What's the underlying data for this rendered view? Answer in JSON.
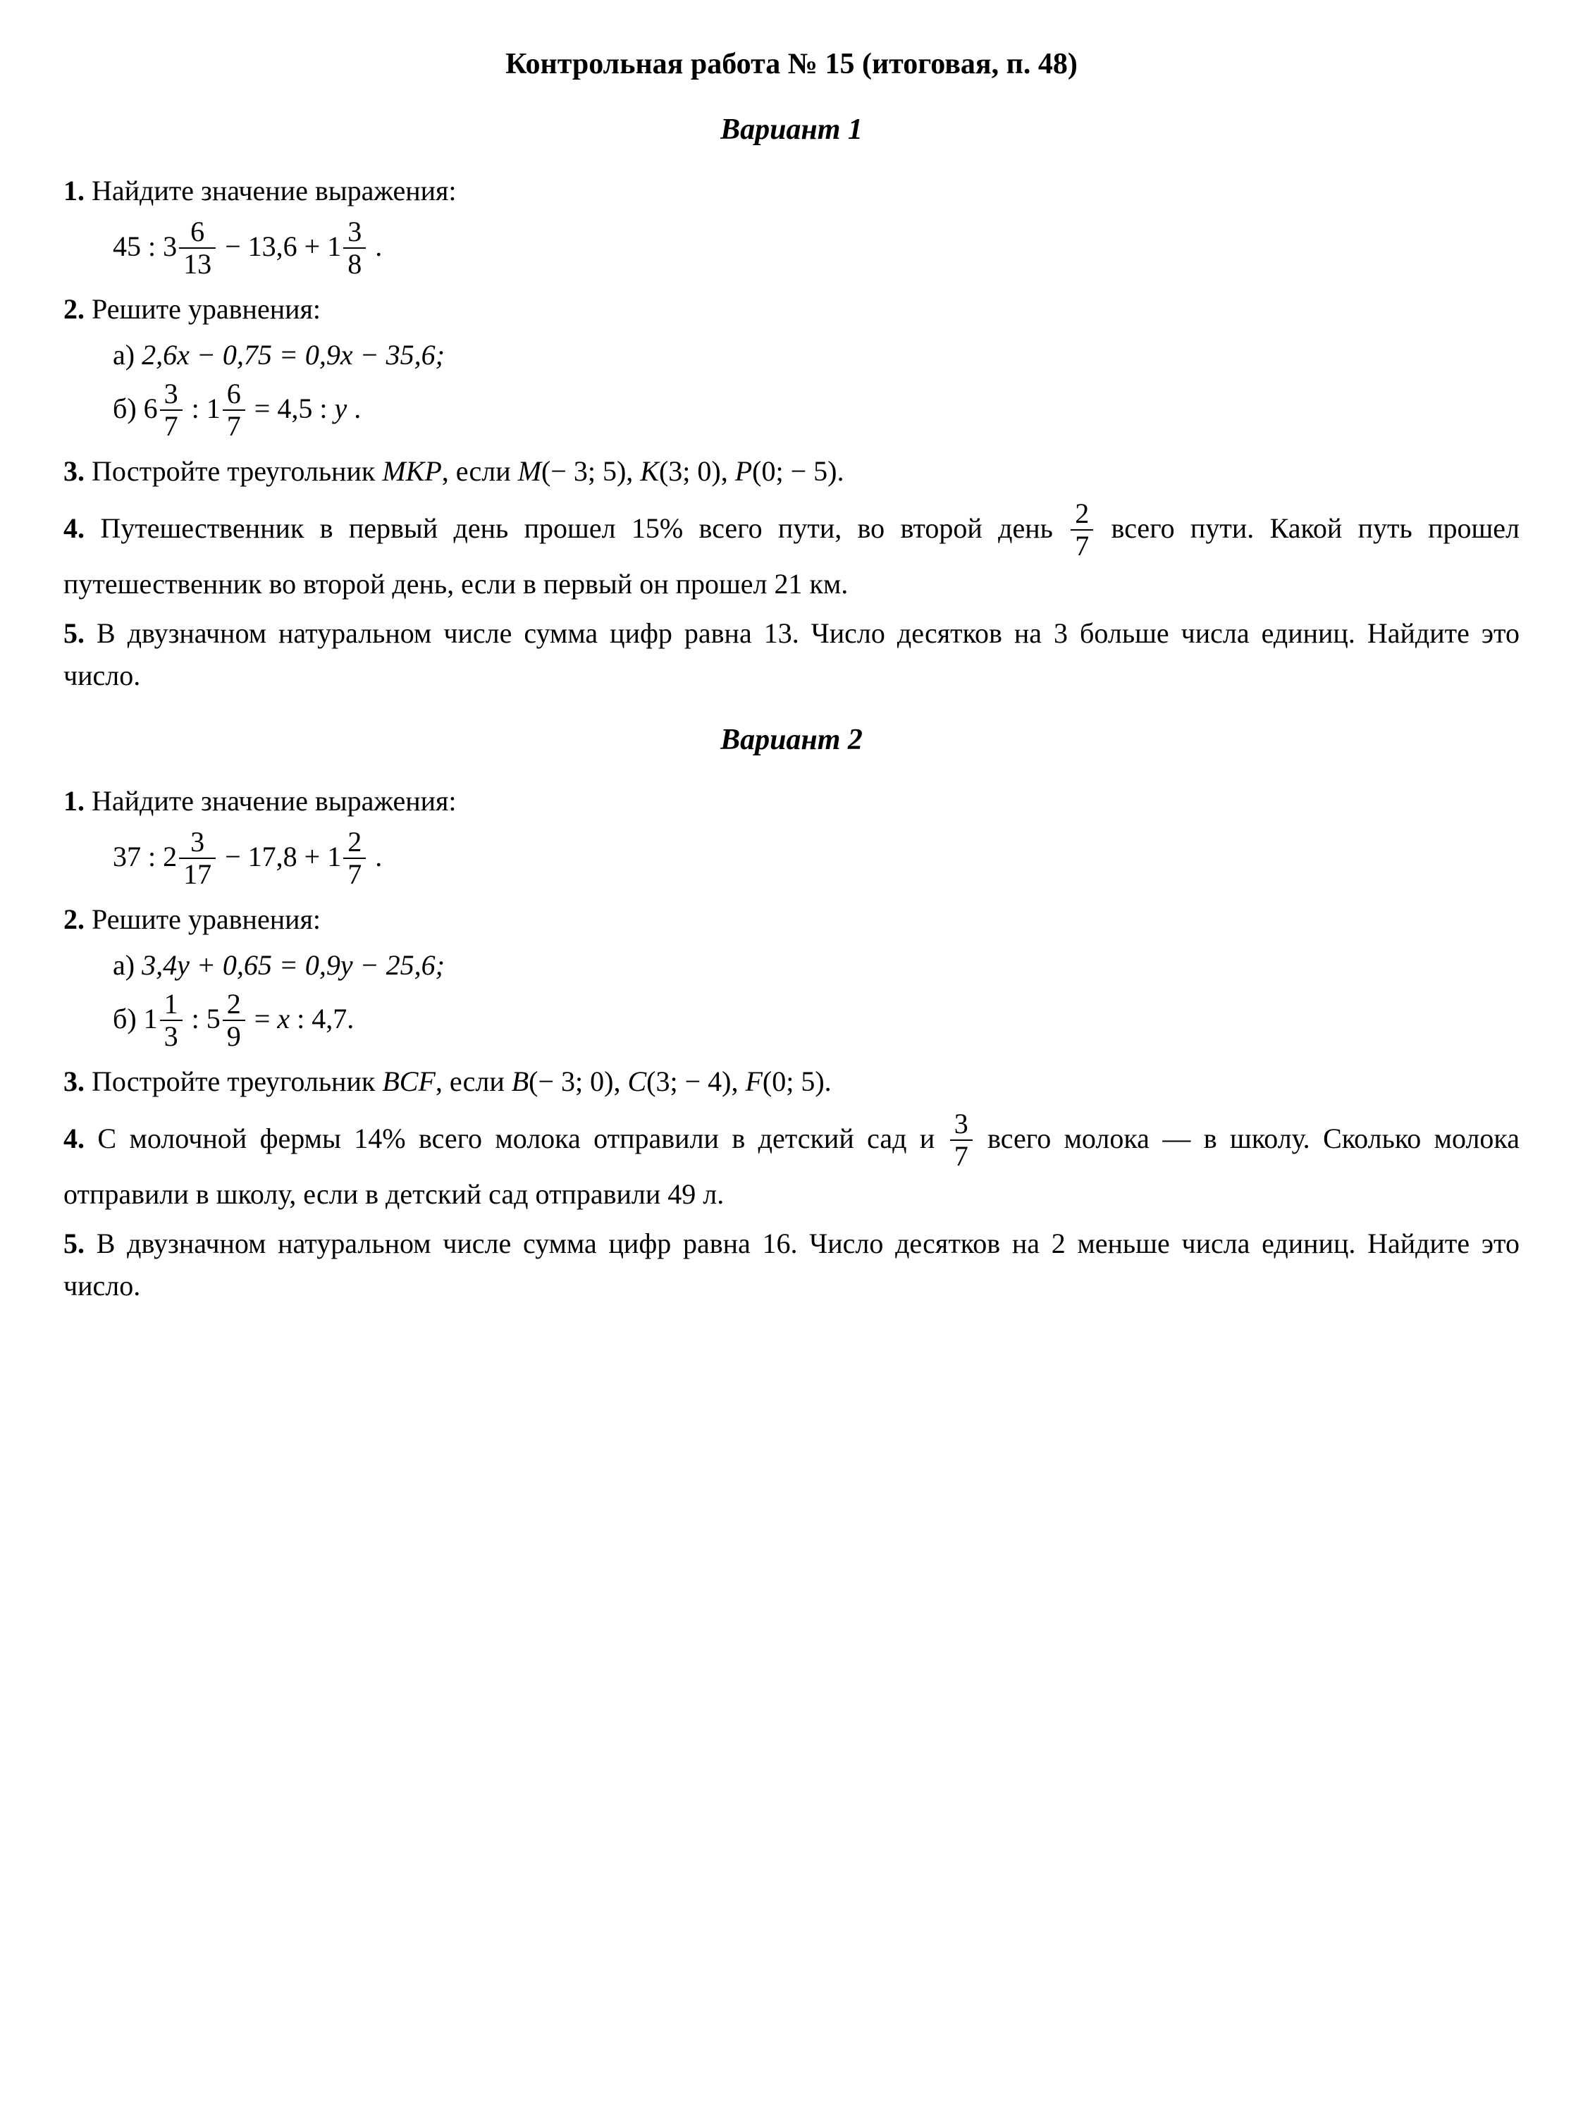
{
  "title": "Контрольная работа № 15 (итоговая, п. 48)",
  "variant1": {
    "heading": "Вариант 1",
    "p1": {
      "num": "1.",
      "text": "Найдите значение выражения:",
      "expr": {
        "lead": "45 : 3",
        "f1n": "6",
        "f1d": "13",
        "mid": " − 13,6 + 1",
        "f2n": "3",
        "f2d": "8",
        "tail": " ."
      }
    },
    "p2": {
      "num": "2.",
      "text": "Решите уравнения:",
      "a": {
        "label": "а) ",
        "body": "2,6x − 0,75 = 0,9x − 35,6;"
      },
      "b": {
        "label": "б) ",
        "lead": "6",
        "f1n": "3",
        "f1d": "7",
        "mid1": " : 1",
        "f2n": "6",
        "f2d": "7",
        "mid2": " = 4,5 : ",
        "yvar": "y",
        "tail": " ."
      }
    },
    "p3": {
      "num": "3.",
      "pre": "Постройте треугольник ",
      "tri": "MKP",
      "mid": ", если ",
      "M": "M",
      "Mc": "(− 3; 5), ",
      "K": "K",
      "Kc": "(3; 0), ",
      "P": "P",
      "Pc": "(0; − 5)."
    },
    "p4": {
      "num": "4.",
      "pre": "Путешественник в первый день прошел 15% всего пути, во второй день ",
      "fn": "2",
      "fd": "7",
      "post": " всего пути. Какой путь прошел путешественник во второй день, если в первый он прошел 21 км."
    },
    "p5": {
      "num": "5.",
      "text": "В двузначном натуральном числе сумма цифр равна 13. Число десятков на 3 больше числа единиц. Найдите это число."
    }
  },
  "variant2": {
    "heading": "Вариант 2",
    "p1": {
      "num": "1.",
      "text": "Найдите значение выражения:",
      "expr": {
        "lead": "37 : 2",
        "f1n": "3",
        "f1d": "17",
        "mid": " − 17,8 + 1",
        "f2n": "2",
        "f2d": "7",
        "tail": " ."
      }
    },
    "p2": {
      "num": "2.",
      "text": "Решите уравнения:",
      "a": {
        "label": "а) ",
        "body": "3,4y + 0,65 = 0,9y − 25,6;"
      },
      "b": {
        "label": "б) ",
        "lead": "1",
        "f1n": "1",
        "f1d": "3",
        "mid1": " : 5",
        "f2n": "2",
        "f2d": "9",
        "mid2": " = ",
        "xvar": "x",
        "tail2": " : 4,7."
      }
    },
    "p3": {
      "num": "3.",
      "pre": "Постройте треугольник ",
      "tri": "BCF",
      "mid": ", если ",
      "B": "B",
      "Bc": "(− 3; 0), ",
      "C": "C",
      "Cc": "(3; − 4), ",
      "F": "F",
      "Fc": "(0; 5)."
    },
    "p4": {
      "num": "4.",
      "pre": "С молочной фермы 14% всего молока отправили в детский сад и ",
      "fn": "3",
      "fd": "7",
      "post": " всего молока — в школу. Сколько молока отправили в школу, если в детский сад отправили 49 л."
    },
    "p5": {
      "num": "5.",
      "text": "В двузначном натуральном числе сумма цифр равна 16. Число десятков на 2 меньше числа единиц. Найдите это число."
    }
  }
}
